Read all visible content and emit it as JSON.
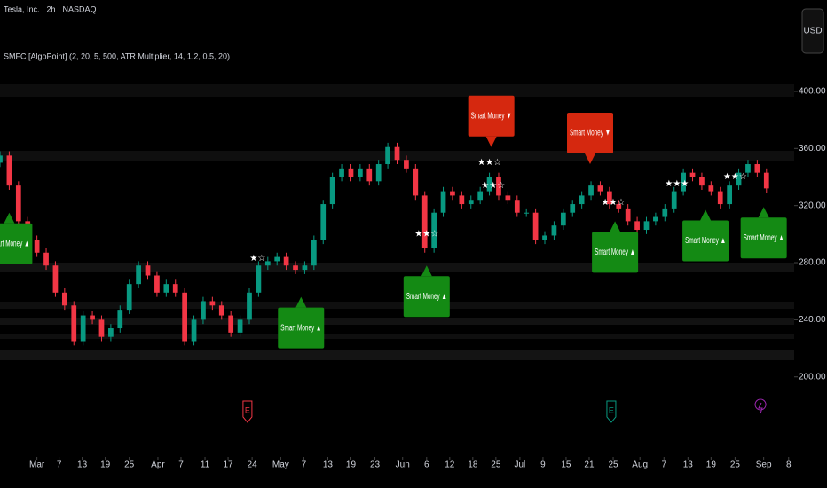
{
  "chart_data": {
    "type": "candlestick",
    "title": "Tesla, Inc. · 2h · NASDAQ",
    "subtitle": "SMFC [AlgoPoint] (2, 20, 5, 500, ATR Multiplier, 14, 1.2, 0.5, 20)",
    "currency": "USD",
    "up_color": "#089981",
    "down_color": "#f23645",
    "open": [
      350,
      355,
      334,
      309,
      296,
      287,
      278,
      259,
      250,
      225,
      243,
      240,
      228,
      234,
      247,
      265,
      278,
      271,
      259,
      265,
      259,
      225,
      240,
      253,
      250,
      243,
      231,
      240,
      259,
      278,
      281,
      284,
      278,
      275,
      278,
      296,
      321,
      340,
      346,
      340,
      346,
      337,
      349,
      361,
      352,
      346,
      327,
      290,
      315,
      330,
      327,
      321,
      324,
      330,
      340,
      327,
      324,
      315,
      315,
      296,
      299,
      306,
      315,
      321,
      327,
      334,
      330,
      321,
      318,
      309,
      303,
      309,
      312,
      318,
      330,
      343,
      340,
      334,
      330,
      321,
      334,
      343,
      349,
      343
    ],
    "high": [
      358,
      358,
      337,
      312,
      299,
      290,
      281,
      262,
      253,
      246,
      246,
      243,
      237,
      250,
      268,
      281,
      281,
      274,
      268,
      268,
      262,
      243,
      256,
      256,
      253,
      246,
      243,
      262,
      281,
      284,
      287,
      287,
      281,
      281,
      299,
      324,
      343,
      349,
      349,
      349,
      349,
      352,
      364,
      364,
      355,
      349,
      330,
      318,
      333,
      333,
      330,
      327,
      333,
      343,
      343,
      330,
      327,
      318,
      318,
      302,
      309,
      318,
      324,
      330,
      337,
      337,
      333,
      324,
      321,
      312,
      312,
      315,
      321,
      333,
      346,
      346,
      343,
      337,
      333,
      337,
      346,
      352,
      352,
      346
    ],
    "low": [
      347,
      331,
      306,
      293,
      284,
      275,
      256,
      247,
      222,
      222,
      237,
      225,
      225,
      231,
      244,
      262,
      268,
      256,
      256,
      256,
      222,
      222,
      237,
      247,
      240,
      228,
      228,
      237,
      256,
      275,
      278,
      275,
      272,
      272,
      275,
      293,
      318,
      337,
      337,
      337,
      334,
      334,
      346,
      349,
      343,
      324,
      287,
      287,
      312,
      324,
      318,
      318,
      321,
      327,
      324,
      321,
      312,
      312,
      293,
      293,
      296,
      303,
      312,
      318,
      324,
      327,
      318,
      315,
      306,
      300,
      300,
      306,
      309,
      315,
      327,
      337,
      331,
      327,
      318,
      318,
      331,
      340,
      340,
      329
    ],
    "close": [
      355,
      334,
      309,
      296,
      287,
      278,
      259,
      250,
      225,
      243,
      240,
      228,
      234,
      247,
      265,
      278,
      271,
      259,
      265,
      259,
      225,
      240,
      253,
      250,
      243,
      231,
      240,
      259,
      278,
      281,
      284,
      278,
      275,
      278,
      296,
      321,
      340,
      346,
      340,
      346,
      337,
      349,
      361,
      352,
      346,
      327,
      290,
      315,
      330,
      327,
      321,
      324,
      330,
      340,
      327,
      324,
      315,
      315,
      296,
      299,
      306,
      315,
      321,
      327,
      334,
      330,
      321,
      318,
      309,
      303,
      309,
      312,
      318,
      330,
      343,
      340,
      334,
      330,
      321,
      334,
      343,
      349,
      343,
      332
    ],
    "xlim": [
      0,
      86
    ],
    "xticks": [
      {
        "value": 4.0,
        "label": "Mar"
      },
      {
        "value": 6.4,
        "label": "7"
      },
      {
        "value": 8.9,
        "label": "13"
      },
      {
        "value": 11.4,
        "label": "19"
      },
      {
        "value": 14.0,
        "label": "25"
      },
      {
        "value": 17.1,
        "label": "Apr"
      },
      {
        "value": 19.6,
        "label": "7"
      },
      {
        "value": 22.2,
        "label": "11"
      },
      {
        "value": 24.7,
        "label": "17"
      },
      {
        "value": 27.3,
        "label": "24"
      },
      {
        "value": 30.4,
        "label": "May"
      },
      {
        "value": 32.9,
        "label": "7"
      },
      {
        "value": 35.5,
        "label": "13"
      },
      {
        "value": 38.0,
        "label": "19"
      },
      {
        "value": 40.6,
        "label": "23"
      },
      {
        "value": 43.6,
        "label": "Jun"
      },
      {
        "value": 46.2,
        "label": "6"
      },
      {
        "value": 48.7,
        "label": "12"
      },
      {
        "value": 51.2,
        "label": "18"
      },
      {
        "value": 53.7,
        "label": "25"
      },
      {
        "value": 56.3,
        "label": "Jul"
      },
      {
        "value": 58.8,
        "label": "9"
      },
      {
        "value": 61.3,
        "label": "15"
      },
      {
        "value": 63.8,
        "label": "21"
      },
      {
        "value": 66.4,
        "label": "25"
      },
      {
        "value": 69.3,
        "label": "Aug"
      },
      {
        "value": 71.9,
        "label": "7"
      },
      {
        "value": 74.5,
        "label": "13"
      },
      {
        "value": 77.0,
        "label": "19"
      },
      {
        "value": 79.6,
        "label": "25"
      },
      {
        "value": 82.7,
        "label": "Sep"
      },
      {
        "value": 85.4,
        "label": "8"
      }
    ],
    "ylim": [
      147,
      464
    ],
    "yticks": [
      {
        "value": 400,
        "label": "400.00"
      },
      {
        "value": 360,
        "label": "360.00"
      },
      {
        "value": 320,
        "label": "320.00"
      },
      {
        "value": 280,
        "label": "280.00"
      },
      {
        "value": 240,
        "label": "240.00"
      },
      {
        "value": 200,
        "label": "200.00"
      }
    ],
    "buy_signals": [
      {
        "text": "Smart Money ▲",
        "x": 1,
        "y": 315
      },
      {
        "text": "Smart Money ▲",
        "x": 32.6,
        "y": 256
      },
      {
        "text": "Smart Money ▲",
        "x": 46.2,
        "y": 278
      },
      {
        "text": "Smart Money ▲",
        "x": 66.6,
        "y": 309
      },
      {
        "text": "Smart Money ▲",
        "x": 76.4,
        "y": 317
      },
      {
        "text": "Smart Money ▲",
        "x": 82.7,
        "y": 319
      }
    ],
    "sell_signals": [
      {
        "text": "Smart Money ▼",
        "x": 53.2,
        "y": 361
      },
      {
        "text": "Smart Money ▼",
        "x": 63.9,
        "y": 349
      }
    ],
    "stars": [
      {
        "text": "★☆",
        "x": 27.9,
        "y": 283
      },
      {
        "text": "★★☆",
        "x": 46.2,
        "y": 300
      },
      {
        "text": "★★☆",
        "x": 53.0,
        "y": 350
      },
      {
        "text": "★★☆",
        "x": 53.4,
        "y": 334
      },
      {
        "text": "★★☆",
        "x": 66.4,
        "y": 322
      },
      {
        "text": "★★★",
        "x": 73.3,
        "y": 335
      },
      {
        "text": "★★☆",
        "x": 79.6,
        "y": 340
      }
    ],
    "events": [
      {
        "text": "E",
        "x": 26.8
      },
      {
        "text": "E",
        "x": 66.2
      }
    ]
  }
}
